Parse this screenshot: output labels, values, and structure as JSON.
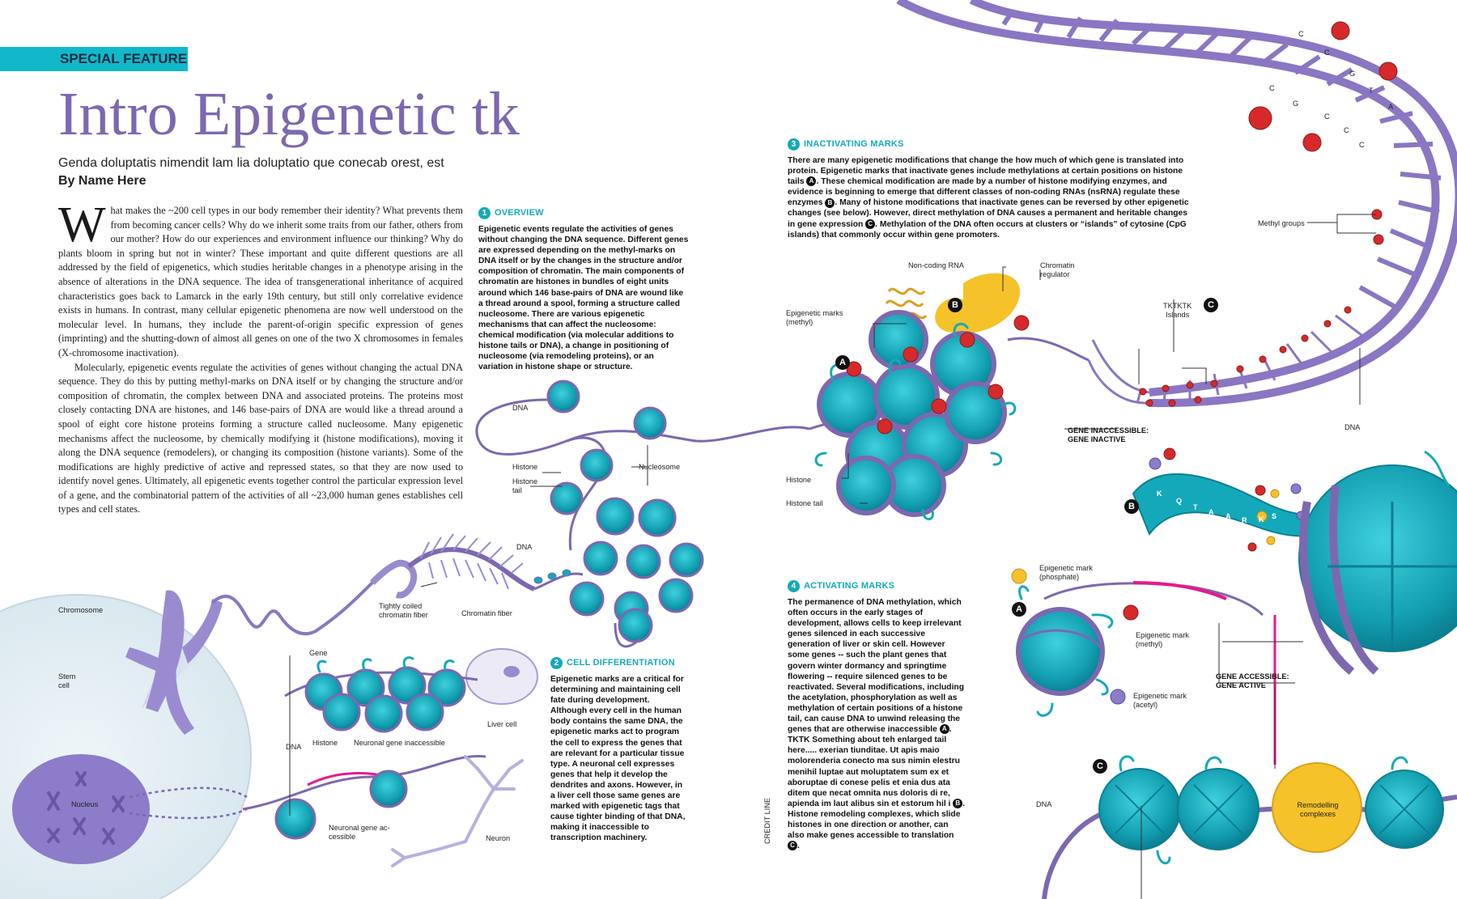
{
  "header": {
    "kicker": "SPECIAL FEATURE",
    "title": "Intro Epigenetic tk",
    "subtitle": "Genda doluptatis nimendit lam lia doluptatio que conecab orest, est",
    "byline": "By Name Here"
  },
  "body": {
    "drop_cap": "W",
    "paragraph1": "hat makes the ~200 cell types in our body remember their identity? What prevents them from becoming cancer cells? Why do we inherit some traits from our father, others from our mother? How do our experiences and environment influence our thinking? Why do plants bloom in spring but not in winter? These important and quite different questions are all addressed by the field of epigenetics, which studies heritable changes in a phenotype arising in the absence of alterations in the DNA sequence. The idea of transgenerational inheritance of acquired characteristics goes back to Lamarck in the early 19th century, but still only correlative evidence exists in humans. In contrast, many cellular epigenetic phenomena are now well understood on the molecular level. In humans, they include the parent-of-origin specific expression of genes (imprinting) and the shutting-down of almost all genes on one of the two X chromosomes in females (X-chromosome inactivation).",
    "paragraph2": "Molecularly, epigenetic events regulate the activities of genes without changing the actual DNA sequence. They do this by putting methyl-marks on DNA itself or by changing the structure and/or composition of chromatin, the complex between DNA and associated proteins. The proteins most closely contacting DNA are histones, and 146 base-pairs of DNA are would like a thread around a spool of eight core histone proteins forming a structure called nucleosome. Many epigenetic mechanisms affect the nucleosome, by chemically modifying it (histone modifications), moving it along the DNA sequence (remodelers), or changing its composition (histone variants). Some of the modifications are highly predictive of active and repressed states, so that they are now used to identify novel genes. Ultimately, all epigenetic events together control the particular expression level of a gene, and the combinatorial pattern of the activities of all ~23,000 human genes establishes cell types and cell states."
  },
  "sections": {
    "overview": {
      "number": "1",
      "heading": "OVERVIEW",
      "text": "Epigenetic events regulate the activities of genes without changing the DNA sequence. Different genes are expressed depending on the methyl-marks on DNA itself or by the changes in the structure and/or composition of chromatin. The main components of chromatin are histones in bundles of eight units around which 146 base-pairs of DNA are wound like a thread around a spool, forming a structure called nucleosome. There are various epigenetic mechanisms that can affect the nucleosome: chemical modification (via molecular additions to histone tails or DNA), a change in positioning of nucleosome (via remodeling proteins), or an variation in histone shape or structure."
    },
    "cell_diff": {
      "number": "2",
      "heading": "CELL DIFFERENTIATION",
      "text": "Epigenetic marks are a critical for determining and maintaining cell fate during development. Although every cell in the human body contains the same DNA, the epigenetic marks act to program the cell to express the genes that are relevant for a particular tissue type. A neuronal cell expresses genes that help it develop the dendrites and axons. However, in a liver cell those same genes are marked with epigenetic tags that cause tighter binding of that DNA, making it inaccessible to transcription machinery."
    },
    "inactivating": {
      "number": "3",
      "heading": "INACTIVATING MARKS",
      "text_a": "There are many epigenetic modifications that change the how much of which gene is translated into protein. Epigenetic marks that inactivate genes include methylations at certain positions on histone tails",
      "text_b": ". These chemical modification are made by a number of histone modifying enzymes, and evidence is beginning to emerge that different classes of non-coding RNAs (nsRNA) regulate these enzymes",
      "text_c": ". Many of histone modifications that inactivate genes can be reversed by other epigenetic changes (see below). However, direct methylation of DNA causes a permanent and heritable changes in gene expression",
      "text_d": ". Methylation of the DNA often occurs at clusters or “islands” of cytosine (CpG islands) that commonly occur within gene promoters."
    },
    "activating": {
      "number": "4",
      "heading": "ACTIVATING MARKS",
      "text_a": "The permanence of DNA methylation, which often occurs in the early stages of development, allows cells to keep irrelevant genes silenced in each successive generation of liver or skin cell. However some genes -- such the plant genes that govern winter dormancy and springtime flowering -- require silenced genes to be reactivated. Several modifications, including the acetylation, phosphorylation as well as methylation of certain positions of a histone tail, can cause DNA to unwind releasing the genes that are otherwise inaccessible",
      "text_b": ". TKTK Something about teh enlarged tail here..... exerian tiunditae. Ut apis maio molorenderia conecto ma sus nimin elestru menihil luptae aut moluptatem sum ex et aboruptae di conese pelis et enia dus ata ditem que necat omnita nus doloris di re, apienda im laut alibus sin et estorum hil i",
      "text_c": ". Histone remodeling complexes, which slide histones in one direction or another, can also make genes accessible to translation",
      "text_d": "."
    }
  },
  "markers": {
    "a": "A",
    "b": "B",
    "c": "C"
  },
  "labels": {
    "chromosome": "Chromosome",
    "stem_cell": "Stem\ncell",
    "nucleus": "Nucleus",
    "tightly_coiled": "Tightly coiled\nchromatin fiber",
    "chromatin_fiber": "Chromatin fiber",
    "dna": "DNA",
    "histone": "Histone",
    "histone_tail": "Histone\ntail",
    "nucleosome": "Nucleosome",
    "gene": "Gene",
    "neuronal_inaccessible": "Neuronal gene inaccessible",
    "neuronal_accessible": "Neuronal gene ac-\ncessible",
    "liver_cell": "Liver cell",
    "neuron": "Neuron",
    "credit_line": "CREDIT LINE",
    "non_coding_rna": "Non-coding RNA",
    "chromatin_regulator": "Chromatin\nregulator",
    "epigenetic_marks_methyl": "Epigenetic marks\n(methyl)",
    "histone_tail_single": "Histone tail",
    "gene_inaccessible": "GENE INACCESSIBLE:\nGENE INACTIVE",
    "tktktk_islands": "TKTKTK\nIslands",
    "methyl_groups": "Methyl groups",
    "epi_phosphate": "Epigenetic mark\n(phosphate)",
    "epi_methyl": "Epigenetic mark\n(methyl)",
    "epi_acetyl": "Epigenetic mark\n(acetyl)",
    "gene_accessible": "GENE ACCESSIBLE:\nGENE ACTIVE",
    "remodelling": "Remodelling\ncomplexes"
  },
  "dna_bases": [
    "C",
    "C",
    "G",
    "T",
    "A",
    "C",
    "G",
    "C",
    "C",
    "C"
  ],
  "tail_letters": [
    "K",
    "Q",
    "T",
    "A",
    "A",
    "R",
    "K",
    "S"
  ],
  "colors": {
    "teal": "#14a9ba",
    "purple": "#7d68b0",
    "mark_red": "#d62a2a",
    "regulator_yellow": "#f5c22a"
  }
}
